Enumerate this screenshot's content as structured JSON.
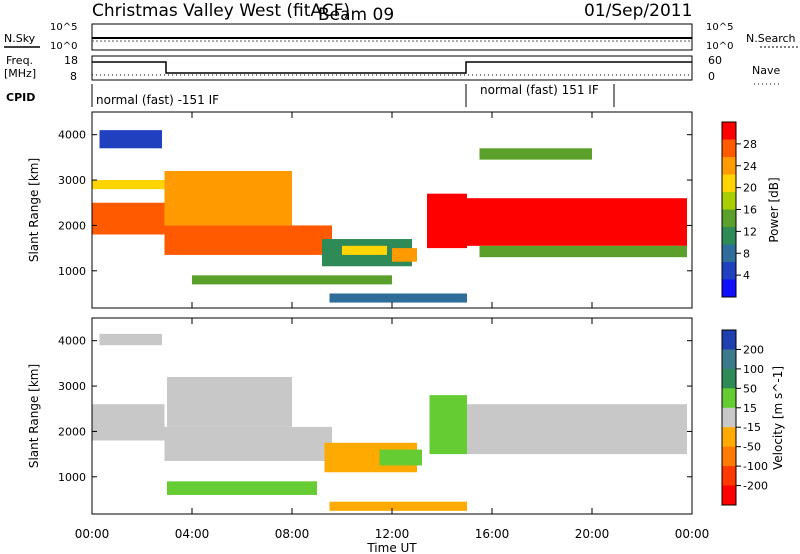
{
  "header": {
    "station": "Christmas Valley West (fitACF)",
    "beam": "Beam 09",
    "date": "01/Sep/2011"
  },
  "top_panels": {
    "nsky_label": "N.Sky",
    "nsearch_label": "N.Search",
    "noise_ticks": [
      "10^5",
      "10^0"
    ],
    "freq_label": "Freq.",
    "freq_unit": "[MHz]",
    "freq_ticks": [
      "18",
      "8"
    ],
    "nave_label": "Nave",
    "nave_ticks": [
      "60",
      "0"
    ],
    "cpid_label": "CPID",
    "cpid_segments": [
      "normal (fast) -151 IF",
      "normal (fast) 151 IF"
    ]
  },
  "x_axis": {
    "label": "Time UT",
    "ticks": [
      "00:00",
      "04:00",
      "08:00",
      "12:00",
      "16:00",
      "20:00",
      "00:00"
    ]
  },
  "power_colorbar": {
    "label": "Power [dB]",
    "ticks": [
      "28",
      "24",
      "20",
      "16",
      "12",
      "8",
      "4"
    ],
    "colors": [
      "#ff0000",
      "#ff5a00",
      "#ff9a00",
      "#ffd400",
      "#a8d000",
      "#5aa02a",
      "#2e8b57",
      "#2f6e9a",
      "#2040c0",
      "#1010ff"
    ]
  },
  "velocity_colorbar": {
    "label": "Velocity [m s^-1]",
    "ticks": [
      "200",
      "100",
      "50",
      "15",
      "-15",
      "-50",
      "-100",
      "-200"
    ],
    "colors": [
      "#2040b0",
      "#3a7a8a",
      "#2e8b57",
      "#66cc33",
      "#c8c8c8",
      "#ffaa00",
      "#ff7a00",
      "#ff3a00",
      "#ff0000"
    ]
  },
  "chart_data": [
    {
      "type": "heatmap",
      "name": "Power",
      "xlabel": "Time UT",
      "ylabel": "Slant Range [km]",
      "xlim": [
        0,
        24
      ],
      "ylim": [
        180,
        4500
      ],
      "yticks": [
        "4000",
        "3000",
        "2000",
        "1000"
      ],
      "yticks_values": [
        4000,
        3000,
        2000,
        1000
      ],
      "clabel": "Power [dB]",
      "crange": [
        3,
        30
      ],
      "regions": [
        {
          "t0": 0.0,
          "t1": 2.9,
          "r0": 1800,
          "r1": 2500,
          "value": 26
        },
        {
          "t0": 0.0,
          "t1": 2.9,
          "r0": 2800,
          "r1": 3000,
          "value": 20
        },
        {
          "t0": 0.3,
          "t1": 2.8,
          "r0": 3700,
          "r1": 4100,
          "value": 6
        },
        {
          "t0": 2.9,
          "t1": 9.6,
          "r0": 1350,
          "r1": 2000,
          "value": 27
        },
        {
          "t0": 2.9,
          "t1": 8.0,
          "r0": 2000,
          "r1": 3200,
          "value": 22
        },
        {
          "t0": 4.0,
          "t1": 12.0,
          "r0": 700,
          "r1": 900,
          "value": 14
        },
        {
          "t0": 9.2,
          "t1": 12.8,
          "r0": 1100,
          "r1": 1700,
          "value": 12
        },
        {
          "t0": 10.0,
          "t1": 11.8,
          "r0": 1350,
          "r1": 1550,
          "value": 20
        },
        {
          "t0": 12.0,
          "t1": 13.0,
          "r0": 1200,
          "r1": 1500,
          "value": 24
        },
        {
          "t0": 13.4,
          "t1": 15.0,
          "r0": 1500,
          "r1": 2700,
          "value": 28
        },
        {
          "t0": 15.0,
          "t1": 23.8,
          "r0": 1550,
          "r1": 2600,
          "value": 28
        },
        {
          "t0": 15.5,
          "t1": 23.8,
          "r0": 1300,
          "r1": 1550,
          "value": 14
        },
        {
          "t0": 9.5,
          "t1": 15.0,
          "r0": 300,
          "r1": 500,
          "value": 10
        },
        {
          "t0": 15.5,
          "t1": 20.0,
          "r0": 3450,
          "r1": 3700,
          "value": 16
        }
      ]
    },
    {
      "type": "heatmap",
      "name": "Velocity",
      "xlabel": "Time UT",
      "ylabel": "Slant Range [km]",
      "xlim": [
        0,
        24
      ],
      "ylim": [
        180,
        4500
      ],
      "yticks": [
        "4000",
        "3000",
        "2000",
        "1000"
      ],
      "yticks_values": [
        4000,
        3000,
        2000,
        1000
      ],
      "clabel": "Velocity [m s^-1]",
      "crange": [
        -200,
        200
      ],
      "regions": [
        {
          "t0": 0.0,
          "t1": 2.9,
          "r0": 1800,
          "r1": 2600,
          "value": 0
        },
        {
          "t0": 2.9,
          "t1": 9.6,
          "r0": 1350,
          "r1": 2100,
          "value": 0
        },
        {
          "t0": 3.0,
          "t1": 8.0,
          "r0": 2100,
          "r1": 3200,
          "value": -20
        },
        {
          "t0": 3.0,
          "t1": 9.0,
          "r0": 600,
          "r1": 900,
          "value": 30
        },
        {
          "t0": 9.3,
          "t1": 13.0,
          "r0": 1100,
          "r1": 1750,
          "value": -40
        },
        {
          "t0": 11.5,
          "t1": 13.2,
          "r0": 1250,
          "r1": 1600,
          "value": 60
        },
        {
          "t0": 13.5,
          "t1": 15.0,
          "r0": 1500,
          "r1": 2800,
          "value": 40
        },
        {
          "t0": 15.0,
          "t1": 23.8,
          "r0": 1500,
          "r1": 2600,
          "value": 0
        },
        {
          "t0": 9.5,
          "t1": 15.0,
          "r0": 250,
          "r1": 450,
          "value": -30
        },
        {
          "t0": 0.3,
          "t1": 2.8,
          "r0": 3900,
          "r1": 4150,
          "value": -20
        }
      ]
    }
  ]
}
